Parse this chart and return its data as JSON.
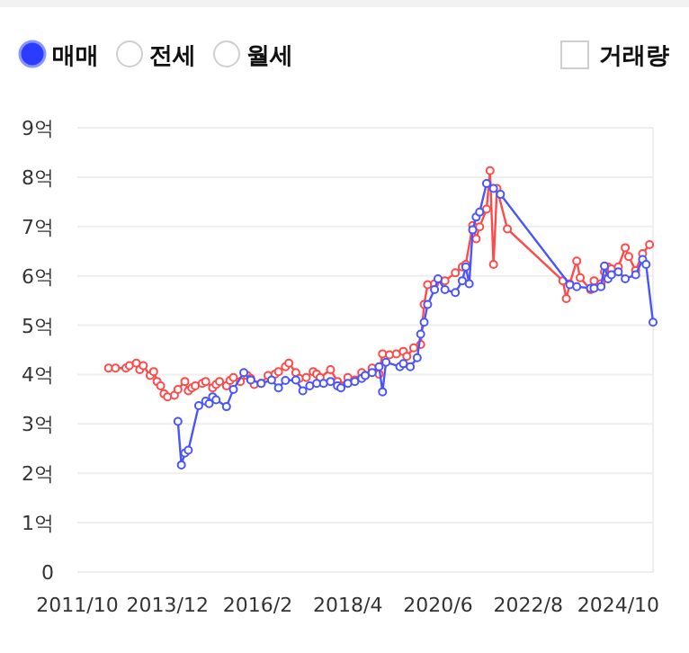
{
  "chart_data": {
    "type": "line",
    "marker": "circle",
    "grid": "y",
    "annotations": [
      "매매",
      "전세",
      "월세",
      "거래량"
    ],
    "xlim": [
      "2011-10",
      "2025-08"
    ],
    "ylim": [
      0,
      9
    ],
    "xticks": [
      {
        "value": "2011-10",
        "label": "2011/10"
      },
      {
        "value": "2013-12",
        "label": "2013/12"
      },
      {
        "value": "2016-02",
        "label": "2016/2"
      },
      {
        "value": "2018-04",
        "label": "2018/4"
      },
      {
        "value": "2020-06",
        "label": "2020/6"
      },
      {
        "value": "2022-08",
        "label": "2022/8"
      },
      {
        "value": "2024-10",
        "label": "2024/10"
      }
    ],
    "yticks": [
      0,
      {
        "value": 1,
        "label": "1억"
      },
      {
        "value": 2,
        "label": "2억"
      },
      {
        "value": 3,
        "label": "3억"
      },
      {
        "value": 4,
        "label": "4억"
      },
      {
        "value": 5,
        "label": "5억"
      },
      {
        "value": 6,
        "label": "6억"
      },
      {
        "value": 7,
        "label": "7억"
      },
      {
        "value": 8,
        "label": "8억"
      },
      {
        "value": 9,
        "label": "9억"
      }
    ],
    "series": [
      {
        "color": "#ff4a4a",
        "x": [
          "2012-07",
          "2012-09",
          "2012-12",
          "2013-01",
          "2013-03",
          "2013-04",
          "2013-05",
          "2013-07",
          "2013-08",
          "2013-09",
          "2013-10",
          "2013-11",
          "2013-12",
          "2014-02",
          "2014-03",
          "2014-05",
          "2014-06",
          "2014-07",
          "2014-08",
          "2014-10",
          "2014-11",
          "2015-01",
          "2015-02",
          "2015-03",
          "2015-05",
          "2015-06",
          "2015-07",
          "2015-09",
          "2015-11",
          "2015-12",
          "2016-01",
          "2016-03",
          "2016-05",
          "2016-07",
          "2016-08",
          "2016-10",
          "2016-11",
          "2017-01",
          "2017-02",
          "2017-04",
          "2017-06",
          "2017-07",
          "2017-08",
          "2017-11",
          "2018-01",
          "2018-02",
          "2018-04",
          "2018-06",
          "2018-08",
          "2018-09",
          "2018-11",
          "2019-01",
          "2019-02",
          "2019-04",
          "2019-06",
          "2019-08",
          "2019-09",
          "2019-11",
          "2020-01",
          "2020-02",
          "2020-03",
          "2020-05",
          "2020-08",
          "2020-11",
          "2021-01",
          "2021-02",
          "2021-04",
          "2021-05",
          "2021-06",
          "2021-08",
          "2021-09",
          "2021-10",
          "2021-11",
          "2022-02",
          "2023-06",
          "2023-07",
          "2023-08",
          "2023-10",
          "2023-11",
          "2024-02",
          "2024-03",
          "2024-05",
          "2024-06",
          "2024-07",
          "2024-08",
          "2024-10",
          "2024-12",
          "2025-01",
          "2025-03",
          "2025-05",
          "2025-07"
        ],
        "values": [
          4.13,
          4.13,
          4.13,
          4.18,
          4.23,
          4.1,
          4.18,
          3.98,
          4.06,
          3.86,
          3.77,
          3.61,
          3.55,
          3.58,
          3.7,
          3.86,
          3.67,
          3.73,
          3.77,
          3.82,
          3.86,
          3.73,
          3.8,
          3.86,
          3.77,
          3.88,
          3.94,
          3.86,
          3.98,
          3.92,
          3.8,
          3.82,
          3.98,
          4.01,
          4.06,
          4.16,
          4.23,
          4.04,
          3.92,
          3.94,
          4.06,
          4.01,
          3.94,
          4.1,
          3.86,
          3.77,
          3.94,
          3.89,
          4.04,
          3.98,
          4.13,
          4.01,
          4.42,
          4.4,
          4.42,
          4.47,
          4.37,
          4.54,
          4.61,
          5.42,
          5.82,
          5.84,
          5.9,
          6.06,
          6.18,
          6.23,
          7.02,
          6.75,
          6.99,
          7.35,
          8.13,
          6.23,
          7.77,
          6.95,
          5.9,
          5.54,
          5.84,
          6.3,
          5.96,
          5.72,
          5.9,
          5.84,
          6.08,
          6.18,
          6.14,
          6.18,
          6.57,
          6.39,
          6.11,
          6.45,
          6.63
        ]
      },
      {
        "color": "#4a55ff",
        "x": [
          "2014-03",
          "2014-04",
          "2014-05",
          "2014-06",
          "2014-09",
          "2014-11",
          "2014-12",
          "2015-01",
          "2015-02",
          "2015-05",
          "2015-07",
          "2015-10",
          "2015-12",
          "2016-03",
          "2016-06",
          "2016-08",
          "2016-10",
          "2017-01",
          "2017-03",
          "2017-05",
          "2017-07",
          "2017-09",
          "2017-11",
          "2018-01",
          "2018-02",
          "2018-04",
          "2018-06",
          "2018-08",
          "2018-09",
          "2018-11",
          "2019-01",
          "2019-02",
          "2019-03",
          "2019-07",
          "2019-08",
          "2019-10",
          "2019-12",
          "2020-01",
          "2020-02",
          "2020-03",
          "2020-05",
          "2020-06",
          "2020-08",
          "2020-11",
          "2021-01",
          "2021-02",
          "2021-03",
          "2021-04",
          "2021-05",
          "2021-06",
          "2021-08",
          "2021-10",
          "2021-12",
          "2023-08",
          "2023-10",
          "2024-02",
          "2024-03",
          "2024-05",
          "2024-06",
          "2024-07",
          "2024-08",
          "2024-10",
          "2024-12",
          "2025-03",
          "2025-05",
          "2025-06",
          "2025-08"
        ],
        "values": [
          3.05,
          2.17,
          2.41,
          2.47,
          3.37,
          3.46,
          3.41,
          3.55,
          3.49,
          3.35,
          3.7,
          4.04,
          3.89,
          3.82,
          3.89,
          3.73,
          3.88,
          3.89,
          3.67,
          3.77,
          3.82,
          3.82,
          3.86,
          3.77,
          3.73,
          3.82,
          3.86,
          3.92,
          3.98,
          4.04,
          4.16,
          3.65,
          4.25,
          4.16,
          4.22,
          4.16,
          4.34,
          4.82,
          5.06,
          5.42,
          5.72,
          5.94,
          5.72,
          5.66,
          5.9,
          6.18,
          5.84,
          6.93,
          7.19,
          7.29,
          7.87,
          7.77,
          7.65,
          5.82,
          5.78,
          5.75,
          5.75,
          5.78,
          6.2,
          5.94,
          6.02,
          6.08,
          5.94,
          6.02,
          6.33,
          6.23,
          5.06
        ]
      }
    ]
  }
}
